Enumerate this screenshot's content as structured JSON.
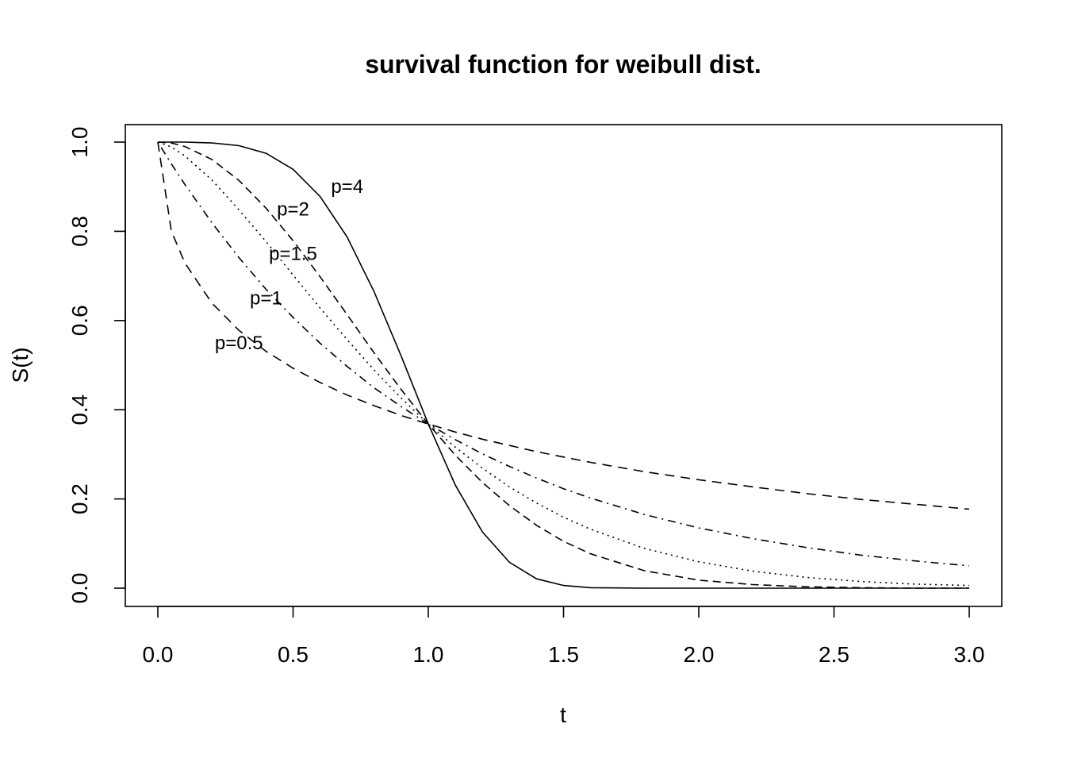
{
  "chart_data": {
    "type": "line",
    "title": "survival function for weibull dist.",
    "xlabel": "t",
    "ylabel": "S(t)",
    "xlim": [
      0,
      3
    ],
    "ylim": [
      0,
      1
    ],
    "xticks": [
      "0.0",
      "0.5",
      "1.0",
      "1.5",
      "2.0",
      "2.5",
      "3.0"
    ],
    "xtick_values": [
      0,
      0.5,
      1,
      1.5,
      2,
      2.5,
      3
    ],
    "yticks": [
      "0.0",
      "0.2",
      "0.4",
      "0.6",
      "0.8",
      "1.0"
    ],
    "ytick_values": [
      0,
      0.2,
      0.4,
      0.6,
      0.8,
      1.0
    ],
    "grid": false,
    "legend": "none",
    "x": [
      0,
      0.05,
      0.1,
      0.2,
      0.3,
      0.4,
      0.5,
      0.6,
      0.7,
      0.8,
      0.9,
      1.0,
      1.1,
      1.2,
      1.3,
      1.4,
      1.5,
      1.6,
      1.8,
      2.0,
      2.2,
      2.4,
      2.6,
      2.8,
      3.0
    ],
    "series": [
      {
        "name": "p=0.5",
        "label_pos": [
          0.3,
          0.55
        ],
        "dash": "12 8",
        "values": [
          1.0,
          0.8,
          0.729,
          0.639,
          0.578,
          0.531,
          0.493,
          0.461,
          0.433,
          0.409,
          0.387,
          0.368,
          0.35,
          0.334,
          0.32,
          0.306,
          0.294,
          0.282,
          0.261,
          0.243,
          0.227,
          0.212,
          0.199,
          0.188,
          0.177
        ]
      },
      {
        "name": "p=1",
        "label_pos": [
          0.4,
          0.65
        ],
        "dash": "2 6 10 6",
        "values": [
          1.0,
          0.951,
          0.905,
          0.819,
          0.741,
          0.67,
          0.607,
          0.549,
          0.497,
          0.449,
          0.407,
          0.368,
          0.333,
          0.301,
          0.273,
          0.247,
          0.223,
          0.202,
          0.165,
          0.135,
          0.111,
          0.091,
          0.074,
          0.061,
          0.05
        ]
      },
      {
        "name": "p=1.5",
        "label_pos": [
          0.5,
          0.75
        ],
        "dash": "2 5",
        "values": [
          1.0,
          0.989,
          0.969,
          0.915,
          0.848,
          0.777,
          0.702,
          0.628,
          0.557,
          0.489,
          0.426,
          0.368,
          0.316,
          0.269,
          0.227,
          0.191,
          0.159,
          0.132,
          0.089,
          0.059,
          0.038,
          0.024,
          0.015,
          0.009,
          0.006
        ]
      },
      {
        "name": "p=2",
        "label_pos": [
          0.5,
          0.85
        ],
        "dash": "10 6",
        "values": [
          1.0,
          0.998,
          0.99,
          0.961,
          0.914,
          0.852,
          0.779,
          0.698,
          0.613,
          0.527,
          0.445,
          0.368,
          0.298,
          0.237,
          0.185,
          0.141,
          0.105,
          0.077,
          0.039,
          0.018,
          0.008,
          0.003,
          0.001,
          0.0,
          0.0
        ]
      },
      {
        "name": "p=4",
        "label_pos": [
          0.7,
          0.9
        ],
        "dash": "",
        "values": [
          1.0,
          1.0,
          1.0,
          0.998,
          0.992,
          0.975,
          0.939,
          0.878,
          0.787,
          0.664,
          0.52,
          0.368,
          0.231,
          0.126,
          0.058,
          0.021,
          0.006,
          0.001,
          0.0,
          0.0,
          0.0,
          0.0,
          0.0,
          0.0,
          0.0
        ]
      }
    ]
  }
}
